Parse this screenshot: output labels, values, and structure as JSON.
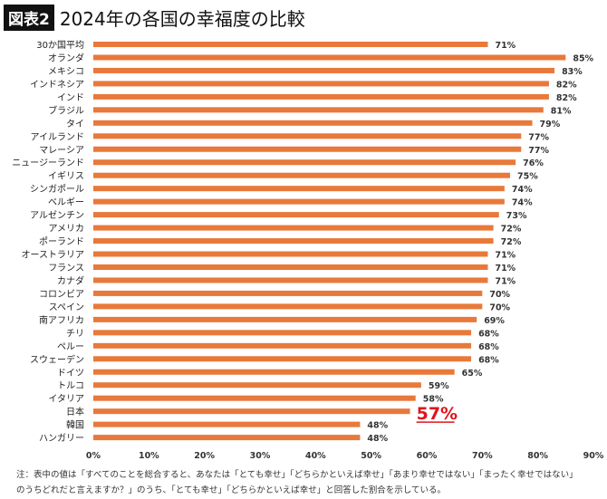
{
  "title_badge": "図表2",
  "title": "2024年の各国の幸福度の比較",
  "note_line1": "注：表中の値は「すべてのことを総合すると、あなたは「とても幸せ」「どちらかといえば幸せ」「あまり幸せではない」「まったく幸せではない」",
  "note_line2": "のうちどれだと言えますか？」のうち、「とても幸せ」「どちらかといえば幸せ」と回答した割合を示している。",
  "chart_data": {
    "type": "bar",
    "orientation": "horizontal",
    "categories": [
      "30か国平均",
      "オランダ",
      "メキシコ",
      "インドネシア",
      "インド",
      "ブラジル",
      "タイ",
      "アイルランド",
      "マレーシア",
      "ニュージーランド",
      "イギリス",
      "シンガポール",
      "ベルギー",
      "アルゼンチン",
      "アメリカ",
      "ポーランド",
      "オーストラリア",
      "フランス",
      "カナダ",
      "コロンビア",
      "スペイン",
      "南アフリカ",
      "チリ",
      "ペルー",
      "スウェーデン",
      "ドイツ",
      "トルコ",
      "イタリア",
      "日本",
      "韓国",
      "ハンガリー"
    ],
    "values": [
      71,
      85,
      83,
      82,
      82,
      81,
      79,
      77,
      77,
      76,
      75,
      74,
      74,
      73,
      72,
      72,
      71,
      71,
      71,
      70,
      70,
      69,
      68,
      68,
      68,
      65,
      59,
      58,
      57,
      48,
      48
    ],
    "value_labels": [
      "71%",
      "85%",
      "83%",
      "82%",
      "82%",
      "81%",
      "79%",
      "77%",
      "77%",
      "76%",
      "75%",
      "74%",
      "74%",
      "73%",
      "72%",
      "72%",
      "71%",
      "71%",
      "71%",
      "70%",
      "70%",
      "69%",
      "68%",
      "68%",
      "68%",
      "65%",
      "59%",
      "58%",
      "57%",
      "48%",
      "48%"
    ],
    "highlight": "日本",
    "xlim": [
      0,
      90
    ],
    "xticks": [
      "0%",
      "10%",
      "20%",
      "30%",
      "40%",
      "50%",
      "60%",
      "70%",
      "80%",
      "90%"
    ],
    "grid": false,
    "bar_color": "#E8793A",
    "highlight_color": "#E0141E"
  }
}
